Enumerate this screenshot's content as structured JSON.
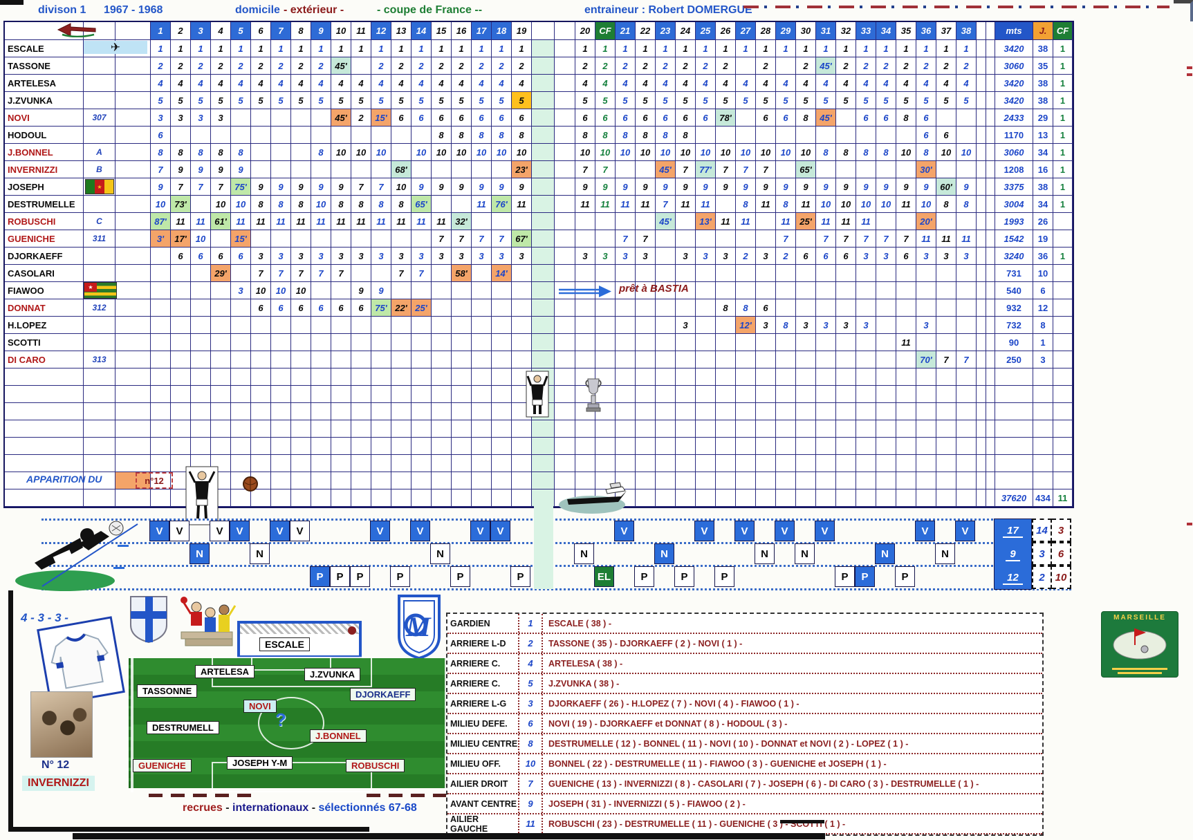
{
  "palette": {
    "blue": "#2356c8",
    "dark_red": "#8b1a1a",
    "green": "#1e7e34",
    "orange_hl": "#f4a469",
    "green_hl": "#bfe8a8",
    "cyan_hl": "#c6e9d9",
    "yellow_hl": "#ffc01e",
    "home_blue": "#2e6bd6"
  },
  "header": {
    "division": "divison 1",
    "season": "1967 - 1968",
    "domicile": "domicile",
    "exterieur": "- extérieur -",
    "coupe": "- coupe de France --",
    "entraineur": "entraineur : Robert DOMERGUE"
  },
  "columns": {
    "home": [
      1,
      3,
      5,
      7,
      9,
      12,
      14,
      17,
      18,
      21,
      23,
      25,
      27,
      29,
      31,
      33,
      34,
      36,
      38
    ],
    "cf_label": "CF",
    "mts_label": "mts",
    "j_label": "J."
  },
  "players": [
    {
      "name": "ESCALE",
      "red": false,
      "code": "",
      "icon": "plane",
      "mts": "3420",
      "j": "38",
      "cf": "1",
      "bold": true,
      "cells": {
        "1": "1",
        "2": "1",
        "3": "1",
        "4": "1",
        "5": "1",
        "6": "1",
        "7": "1",
        "8": "1",
        "9": "1",
        "10": "1",
        "11": "1",
        "12": "1",
        "13": "1",
        "14": "1",
        "15": "1",
        "16": "1",
        "17": "1",
        "18": "1",
        "19": "1",
        "20": "1",
        "CF": "1",
        "21": "1",
        "22": "1",
        "23": "1",
        "24": "1",
        "25": "1",
        "26": "1",
        "27": "1",
        "28": "1",
        "29": "1",
        "30": "1",
        "31": "1",
        "32": "1",
        "33": "1",
        "34": "1",
        "35": "1",
        "36": "1",
        "37": "1",
        "38": "1"
      },
      "hl": {}
    },
    {
      "name": "TASSONE",
      "red": false,
      "code": "",
      "icon": null,
      "mts": "3060",
      "j": "35",
      "cf": "1",
      "bold": true,
      "cells": {
        "1": "2",
        "2": "2",
        "3": "2",
        "4": "2",
        "5": "2",
        "6": "2",
        "7": "2",
        "8": "2",
        "9": "2",
        "10": "45'",
        "12": "2",
        "13": "2",
        "14": "2",
        "15": "2",
        "16": "2",
        "17": "2",
        "18": "2",
        "19": "2",
        "20": "2",
        "CF": "2",
        "21": "2",
        "22": "2",
        "23": "2",
        "24": "2",
        "25": "2",
        "26": "2",
        "28": "2",
        "30": "2",
        "31": "45'",
        "32": "2",
        "33": "2",
        "34": "2",
        "35": "2",
        "36": "2",
        "37": "2",
        "38": "2"
      },
      "hl": {
        "10": "c",
        "31": "c"
      }
    },
    {
      "name": "ARTELESA",
      "red": false,
      "code": "",
      "icon": null,
      "mts": "3420",
      "j": "38",
      "cf": "1",
      "bold": true,
      "cells": {
        "1": "4",
        "2": "4",
        "3": "4",
        "4": "4",
        "5": "4",
        "6": "4",
        "7": "4",
        "8": "4",
        "9": "4",
        "10": "4",
        "11": "4",
        "12": "4",
        "13": "4",
        "14": "4",
        "15": "4",
        "16": "4",
        "17": "4",
        "18": "4",
        "19": "4",
        "20": "4",
        "CF": "4",
        "21": "4",
        "22": "4",
        "23": "4",
        "24": "4",
        "25": "4",
        "26": "4",
        "27": "4",
        "28": "4",
        "29": "4",
        "30": "4",
        "31": "4",
        "32": "4",
        "33": "4",
        "34": "4",
        "35": "4",
        "36": "4",
        "37": "4",
        "38": "4"
      },
      "hl": {}
    },
    {
      "name": "J.ZVUNKA",
      "red": false,
      "code": "",
      "icon": null,
      "mts": "3420",
      "j": "38",
      "cf": "1",
      "bold": true,
      "cells": {
        "1": "5",
        "2": "5",
        "3": "5",
        "4": "5",
        "5": "5",
        "6": "5",
        "7": "5",
        "8": "5",
        "9": "5",
        "10": "5",
        "11": "5",
        "12": "5",
        "13": "5",
        "14": "5",
        "15": "5",
        "16": "5",
        "17": "5",
        "18": "5",
        "19": "5",
        "20": "5",
        "CF": "5",
        "21": "5",
        "22": "5",
        "23": "5",
        "24": "5",
        "25": "5",
        "26": "5",
        "27": "5",
        "28": "5",
        "29": "5",
        "30": "5",
        "31": "5",
        "32": "5",
        "33": "5",
        "34": "5",
        "35": "5",
        "36": "5",
        "37": "5",
        "38": "5"
      },
      "hl": {
        "19": "y"
      }
    },
    {
      "name": "NOVI",
      "red": true,
      "code": "307",
      "icon": null,
      "mts": "2433",
      "j": "29",
      "cf": "1",
      "bold": true,
      "cells": {
        "1": "3",
        "2": "3",
        "3": "3",
        "4": "3",
        "10": "45'",
        "11": "2",
        "12": "15'",
        "13": "6",
        "14": "6",
        "15": "6",
        "16": "6",
        "17": "6",
        "18": "6",
        "19": "6",
        "20": "6",
        "CF": "6",
        "21": "6",
        "22": "6",
        "23": "6",
        "24": "6",
        "25": "6",
        "26": "78'",
        "28": "6",
        "29": "6",
        "30": "8",
        "31": "45'",
        "33": "6",
        "34": "6",
        "35": "8",
        "36": "6"
      },
      "hl": {
        "10": "o",
        "12": "o",
        "26": "c",
        "31": "o"
      }
    },
    {
      "name": "HODOUL",
      "red": false,
      "code": "",
      "icon": null,
      "mts": "1170",
      "j": "13",
      "cf": "1",
      "bold": false,
      "cells": {
        "1": "6",
        "15": "8",
        "16": "8",
        "17": "8",
        "18": "8",
        "19": "8",
        "20": "8",
        "CF": "8",
        "21": "8",
        "22": "8",
        "23": "8",
        "24": "8",
        "36": "6",
        "37": "6"
      },
      "hl": {}
    },
    {
      "name": "J.BONNEL",
      "red": true,
      "code": "A",
      "icon": null,
      "mts": "3060",
      "j": "34",
      "cf": "1",
      "bold": true,
      "cells": {
        "1": "8",
        "2": "8",
        "3": "8",
        "4": "8",
        "5": "8",
        "9": "8",
        "10": "10",
        "11": "10",
        "12": "10",
        "14": "10",
        "15": "10",
        "16": "10",
        "17": "10",
        "18": "10",
        "19": "10",
        "20": "10",
        "CF": "10",
        "21": "10",
        "22": "10",
        "23": "10",
        "24": "10",
        "25": "10",
        "26": "10",
        "27": "10",
        "28": "10",
        "29": "10",
        "30": "10",
        "31": "8",
        "32": "8",
        "33": "8",
        "34": "8",
        "35": "10",
        "36": "8",
        "37": "10",
        "38": "10"
      },
      "hl": {}
    },
    {
      "name": "INVERNIZZI",
      "red": true,
      "code": "B",
      "icon": null,
      "mts": "1208",
      "j": "16",
      "cf": "1",
      "bold": false,
      "cells": {
        "1": "7",
        "2": "9",
        "3": "9",
        "4": "9",
        "5": "9",
        "13": "68'",
        "19": "23'",
        "20": "7",
        "CF": "7",
        "23": "45'",
        "24": "7",
        "25": "77'",
        "26": "7",
        "27": "7",
        "28": "7",
        "30": "65'",
        "36": "30'"
      },
      "hl": {
        "13": "c",
        "19": "o",
        "23": "o",
        "25": "c",
        "30": "c",
        "36": "o"
      }
    },
    {
      "name": "JOSEPH",
      "red": false,
      "code": "",
      "icon": "cameroon",
      "mts": "3375",
      "j": "38",
      "cf": "1",
      "bold": true,
      "cells": {
        "1": "9",
        "2": "7",
        "3": "7",
        "4": "7",
        "5": "75'",
        "6": "9",
        "7": "9",
        "8": "9",
        "9": "9",
        "10": "9",
        "11": "7",
        "12": "7",
        "13": "10",
        "14": "9",
        "15": "9",
        "16": "9",
        "17": "9",
        "18": "9",
        "19": "9",
        "20": "9",
        "CF": "9",
        "21": "9",
        "22": "9",
        "23": "9",
        "24": "9",
        "25": "9",
        "26": "9",
        "27": "9",
        "28": "9",
        "29": "9",
        "30": "9",
        "31": "9",
        "32": "9",
        "33": "9",
        "34": "9",
        "35": "9",
        "36": "9",
        "37": "60'",
        "38": "9"
      },
      "hl": {
        "5": "g",
        "37": "c"
      }
    },
    {
      "name": "DESTRUMELLE",
      "red": false,
      "code": "",
      "icon": null,
      "mts": "3004",
      "j": "34",
      "cf": "1",
      "bold": true,
      "cells": {
        "1": "10",
        "2": "73'",
        "4": "10",
        "5": "10",
        "6": "8",
        "7": "8",
        "8": "8",
        "9": "10",
        "10": "8",
        "11": "8",
        "12": "8",
        "13": "8",
        "14": "65'",
        "17": "11",
        "18": "76'",
        "19": "11",
        "20": "11",
        "CF": "11",
        "21": "11",
        "22": "11",
        "23": "7",
        "24": "11",
        "25": "11",
        "27": "8",
        "28": "11",
        "29": "8",
        "30": "11",
        "31": "10",
        "32": "10",
        "33": "10",
        "34": "10",
        "35": "11",
        "36": "10",
        "37": "8",
        "38": "8"
      },
      "hl": {
        "2": "g",
        "14": "g",
        "18": "g"
      }
    },
    {
      "name": "ROBUSCHI",
      "red": true,
      "code": "C",
      "icon": null,
      "mts": "1993",
      "j": "26",
      "cf": "",
      "bold": true,
      "cells": {
        "1": "87'",
        "2": "11",
        "3": "11",
        "4": "61'",
        "5": "11",
        "6": "11",
        "7": "11",
        "8": "11",
        "9": "11",
        "10": "11",
        "11": "11",
        "12": "11",
        "13": "11",
        "14": "11",
        "15": "11",
        "16": "32'",
        "23": "45'",
        "25": "13'",
        "26": "11",
        "27": "11",
        "29": "11",
        "30": "25'",
        "31": "11",
        "32": "11",
        "33": "11",
        "36": "20'"
      },
      "hl": {
        "1": "g",
        "4": "g",
        "16": "c",
        "23": "c",
        "25": "o",
        "30": "o",
        "36": "o"
      }
    },
    {
      "name": "GUENICHE",
      "red": true,
      "code": "311",
      "icon": null,
      "mts": "1542",
      "j": "19",
      "cf": "",
      "bold": true,
      "cells": {
        "1": "3'",
        "2": "17'",
        "3": "10",
        "5": "15'",
        "15": "7",
        "16": "7",
        "17": "7",
        "18": "7",
        "19": "67'",
        "21": "7",
        "22": "7",
        "29": "7",
        "31": "7",
        "32": "7",
        "33": "7",
        "34": "7",
        "35": "7",
        "36": "11",
        "37": "11",
        "38": "11"
      },
      "hl": {
        "1": "o",
        "2": "o",
        "5": "o",
        "19": "g"
      }
    },
    {
      "name": "DJORKAEFF",
      "red": false,
      "code": "",
      "icon": null,
      "mts": "3240",
      "j": "36",
      "cf": "1",
      "bold": true,
      "cells": {
        "2": "6",
        "3": "6",
        "4": "6",
        "5": "6",
        "6": "3",
        "7": "3",
        "8": "3",
        "9": "3",
        "10": "3",
        "11": "3",
        "12": "3",
        "13": "3",
        "14": "3",
        "15": "3",
        "16": "3",
        "17": "3",
        "18": "3",
        "19": "3",
        "20": "3",
        "CF": "3",
        "21": "3",
        "22": "3",
        "24": "3",
        "25": "3",
        "26": "3",
        "27": "2",
        "28": "3",
        "29": "2",
        "30": "6",
        "31": "6",
        "32": "6",
        "33": "3",
        "34": "3",
        "35": "6",
        "36": "3",
        "37": "3",
        "38": "3"
      },
      "hl": {}
    },
    {
      "name": "CASOLARI",
      "red": false,
      "code": "",
      "icon": null,
      "mts": "731",
      "j": "10",
      "cf": "",
      "bold": false,
      "cells": {
        "4": "29'",
        "6": "7",
        "7": "7",
        "8": "7",
        "9": "7",
        "10": "7",
        "13": "7",
        "14": "7",
        "16": "58'",
        "18": "14'"
      },
      "hl": {
        "4": "o",
        "16": "o",
        "18": "o"
      }
    },
    {
      "name": "FIAWOO",
      "red": false,
      "code": "",
      "icon": "togo",
      "mts": "540",
      "j": "6",
      "cf": "",
      "bold": false,
      "cells": {
        "5": "3",
        "6": "10",
        "7": "10",
        "8": "10",
        "11": "9",
        "12": "9"
      },
      "hl": {}
    },
    {
      "name": "DONNAT",
      "red": true,
      "code": "312",
      "icon": null,
      "mts": "932",
      "j": "12",
      "cf": "",
      "bold": false,
      "cells": {
        "6": "6",
        "7": "6",
        "8": "6",
        "9": "6",
        "10": "6",
        "11": "6",
        "12": "75'",
        "13": "22'",
        "14": "25'",
        "26": "8",
        "27": "8",
        "28": "6"
      },
      "hl": {
        "12": "g",
        "13": "o",
        "14": "o"
      }
    },
    {
      "name": "H.LOPEZ",
      "red": false,
      "code": "",
      "icon": null,
      "mts": "732",
      "j": "8",
      "cf": "",
      "bold": false,
      "cells": {
        "24": "3",
        "27": "12'",
        "28": "3",
        "29": "8",
        "30": "3",
        "31": "3",
        "32": "3",
        "33": "3",
        "36": "3"
      },
      "hl": {
        "27": "o"
      }
    },
    {
      "name": "SCOTTI",
      "red": false,
      "code": "",
      "icon": null,
      "mts": "90",
      "j": "1",
      "cf": "",
      "bold": false,
      "cells": {
        "35": "11"
      },
      "hl": {}
    },
    {
      "name": "DI CARO",
      "red": true,
      "code": "313",
      "icon": null,
      "mts": "250",
      "j": "3",
      "cf": "",
      "bold": false,
      "cells": {
        "36": "70'",
        "37": "7",
        "38": "7"
      },
      "hl": {
        "36": "c"
      }
    }
  ],
  "totals": {
    "mts": "37620",
    "j": "434",
    "cf": "11"
  },
  "apparition": {
    "label": "APPARITION DU",
    "badge": "n°12"
  },
  "loan_note": {
    "text": "prêt à BASTIA"
  },
  "results": {
    "marks": {
      "1": "V",
      "2": "V",
      "3": "N",
      "4": "V",
      "5": "V",
      "6": "N",
      "7": "V",
      "8": "V",
      "9": "P",
      "10": "P",
      "11": "P",
      "12": "V",
      "13": "P",
      "14": "V",
      "15": "N",
      "16": "P",
      "17": "V",
      "18": "V",
      "19": "P",
      "20": "N",
      "CF": "EL",
      "21": "V",
      "22": "P",
      "23": "N",
      "24": "P",
      "25": "V",
      "26": "P",
      "27": "V",
      "28": "N",
      "29": "V",
      "30": "N",
      "31": "V",
      "32": "P",
      "33": "P",
      "34": "N",
      "35": "P",
      "36": "V",
      "37": "N",
      "38": "V"
    },
    "el_label": "EL",
    "totals": {
      "v": [
        "17",
        "14",
        "3"
      ],
      "n": [
        "9",
        "3",
        "6"
      ],
      "p": [
        "12",
        "2",
        "10"
      ]
    }
  },
  "formation": {
    "label": "4 - 3 - 3 -",
    "pitch": [
      {
        "t": "ESCALE",
        "c": "k"
      },
      {
        "t": "ARTELESA",
        "c": "k"
      },
      {
        "t": "J.ZVUNKA",
        "c": "k"
      },
      {
        "t": "TASSONNE",
        "c": "k"
      },
      {
        "t": "DJORKAEFF",
        "c": "n"
      },
      {
        "t": "NOVI",
        "c": "cy"
      },
      {
        "t": "DESTRUMELL",
        "c": "k"
      },
      {
        "t": "J.BONNEL",
        "c": "r"
      },
      {
        "t": "GUENICHE",
        "c": "r"
      },
      {
        "t": "JOSEPH Y-M",
        "c": "k"
      },
      {
        "t": "ROBUSCHI",
        "c": "r"
      }
    ],
    "question_mark": "?"
  },
  "number12": {
    "label": "N° 12",
    "name": "INVERNIZZI"
  },
  "footer_note": {
    "parts": [
      {
        "text": "recrues",
        "color": "#a02020"
      },
      {
        "text": " - ",
        "color": "#222222"
      },
      {
        "text": "internationaux",
        "color": "#1a1a8c"
      },
      {
        "text": " - ",
        "color": "#222222"
      },
      {
        "text": "sélectionnés 67-68",
        "color": "#1848c8"
      }
    ]
  },
  "positions": {
    "rows": [
      {
        "label": "GARDIEN",
        "num": "1",
        "players": "ESCALE ( 38 ) -"
      },
      {
        "label": "ARRIERE L-D",
        "num": "2",
        "players": "TASSONE  ( 35 ) - DJORKAEFF ( 2 ) - NOVI ( 1 ) -"
      },
      {
        "label": "ARRIERE C.",
        "num": "4",
        "players": "ARTELESA ( 38 ) -"
      },
      {
        "label": "ARRIERE C.",
        "num": "5",
        "players": "J.ZVUNKA ( 38 ) -"
      },
      {
        "label": "ARRIERE L-G",
        "num": "3",
        "players": "DJORKAEFF ( 26 ) - H.LOPEZ ( 7 ) - NOVI ( 4 ) - FIAWOO ( 1 ) -"
      },
      {
        "label": "MILIEU  DEFE.",
        "num": "6",
        "players": "NOVI ( 19 ) - DJORKAEFF et DONNAT ( 8 ) - HODOUL ( 3 ) -"
      },
      {
        "label": "MILIEU CENTRE",
        "num": "8",
        "players": "DESTRUMELLE ( 12 ) - BONNEL ( 11 ) - NOVI ( 10 ) - DONNAT et NOVI ( 2 ) - LOPEZ ( 1 ) -"
      },
      {
        "label": "MILIEU OFF.",
        "num": "10",
        "players": "BONNEL ( 22 ) - DESTRUMELLE ( 11 ) - FIAWOO ( 3 ) - GUENICHE et JOSEPH ( 1 ) -"
      },
      {
        "label": "AILIER DROIT",
        "num": "7",
        "players": "GUENICHE ( 13 ) - INVERNIZZI ( 8 ) - CASOLARI ( 7 ) - JOSEPH ( 6 ) - DI CARO ( 3 ) - DESTRUMELLE ( 1 ) -"
      },
      {
        "label": "AVANT CENTRE",
        "num": "9",
        "players": "JOSEPH ( 31 ) - INVERNIZZI ( 5 ) - FIAWOO ( 2 ) -"
      },
      {
        "label": "AILIER GAUCHE",
        "num": "11",
        "players": "ROBUSCHI ( 23 ) - DESTRUMELLE ( 11 ) - GUENICHE ( 3 )  - SCOTTI ( 1 ) -"
      }
    ]
  },
  "stamp": {
    "text": "MARSEILLE"
  }
}
